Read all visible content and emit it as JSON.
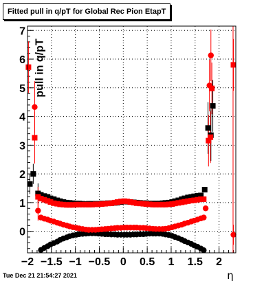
{
  "chart_data": {
    "type": "scatter",
    "title": "Fitted pull in q/pT for Global Rec Pion EtapT",
    "xlabel": "η",
    "ylabel": "pull in q/pT",
    "xlim": [
      -2.0,
      2.35
    ],
    "ylim": [
      -0.75,
      7.15
    ],
    "x_ticks": [
      -2,
      -1.5,
      -1,
      -0.5,
      0,
      0.5,
      1,
      1.5,
      2
    ],
    "x_tick_labels": [
      "−2",
      "−1.5",
      "−1",
      "−0.5",
      "0",
      "0.5",
      "1",
      "1.5",
      "2"
    ],
    "y_ticks": [
      0,
      1,
      2,
      3,
      4,
      5,
      6,
      7
    ],
    "y_tick_labels": [
      "0",
      "1",
      "2",
      "3",
      "4",
      "5",
      "6",
      "7"
    ],
    "grid": true,
    "series": [
      {
        "color": "#000000",
        "marker": "square",
        "points": [
          [
            -1.95,
            1.65
          ],
          [
            -1.88,
            2.0
          ],
          [
            -1.78,
            1.32
          ],
          [
            -1.72,
            1.27
          ],
          [
            -1.65,
            1.23
          ],
          [
            -1.58,
            1.2
          ],
          [
            -1.52,
            1.15
          ],
          [
            -1.45,
            1.12
          ],
          [
            -1.38,
            1.08
          ],
          [
            -1.32,
            1.05
          ],
          [
            -1.25,
            1.02
          ],
          [
            -1.18,
            1.0
          ],
          [
            -1.12,
            0.99
          ],
          [
            -1.05,
            0.98
          ],
          [
            -0.98,
            0.97
          ],
          [
            -0.92,
            0.97
          ],
          [
            -0.85,
            0.96
          ],
          [
            -0.78,
            0.95
          ],
          [
            -0.72,
            0.96
          ],
          [
            -0.65,
            0.96
          ],
          [
            -0.58,
            0.96
          ],
          [
            -0.52,
            0.96
          ],
          [
            -0.45,
            0.97
          ],
          [
            -0.38,
            0.97
          ],
          [
            -0.32,
            0.98
          ],
          [
            -0.25,
            0.98
          ],
          [
            -0.18,
            0.99
          ],
          [
            -0.12,
            1.0
          ],
          [
            -0.05,
            1.02
          ],
          [
            0.02,
            1.04
          ],
          [
            0.08,
            1.03
          ],
          [
            0.15,
            1.02
          ],
          [
            0.22,
            1.01
          ],
          [
            0.28,
            1.0
          ],
          [
            0.35,
            0.99
          ],
          [
            0.42,
            0.98
          ],
          [
            0.48,
            0.98
          ],
          [
            0.55,
            0.97
          ],
          [
            0.62,
            0.97
          ],
          [
            0.68,
            0.97
          ],
          [
            0.75,
            0.97
          ],
          [
            0.82,
            0.98
          ],
          [
            0.88,
            0.99
          ],
          [
            0.95,
            1.0
          ],
          [
            1.02,
            1.02
          ],
          [
            1.08,
            1.05
          ],
          [
            1.15,
            1.08
          ],
          [
            1.22,
            1.12
          ],
          [
            1.28,
            1.15
          ],
          [
            1.35,
            1.18
          ],
          [
            1.42,
            1.2
          ],
          [
            1.48,
            1.22
          ],
          [
            1.55,
            1.24
          ],
          [
            1.62,
            1.25
          ],
          [
            1.7,
            1.45
          ],
          [
            1.77,
            3.6
          ],
          [
            1.83,
            3.35
          ],
          [
            1.87,
            4.37
          ]
        ]
      },
      {
        "color": "#000000",
        "marker": "circle",
        "points": [
          [
            -1.72,
            -0.65
          ],
          [
            -1.65,
            -0.58
          ],
          [
            -1.58,
            -0.52
          ],
          [
            -1.52,
            -0.46
          ],
          [
            -1.45,
            -0.41
          ],
          [
            -1.38,
            -0.36
          ],
          [
            -1.32,
            -0.3
          ],
          [
            -1.25,
            -0.25
          ],
          [
            -1.18,
            -0.21
          ],
          [
            -1.12,
            -0.17
          ],
          [
            -1.05,
            -0.14
          ],
          [
            -0.98,
            -0.12
          ],
          [
            -0.92,
            -0.1
          ],
          [
            -0.85,
            -0.09
          ],
          [
            -0.78,
            -0.08
          ],
          [
            -0.72,
            -0.07
          ],
          [
            -0.65,
            -0.07
          ],
          [
            -0.58,
            -0.07
          ],
          [
            -0.52,
            -0.08
          ],
          [
            -0.45,
            -0.09
          ],
          [
            -0.38,
            -0.1
          ],
          [
            -0.32,
            -0.1
          ],
          [
            -0.25,
            -0.11
          ],
          [
            -0.18,
            -0.11
          ],
          [
            -0.12,
            -0.12
          ],
          [
            -0.05,
            -0.12
          ],
          [
            0.02,
            -0.12
          ],
          [
            0.08,
            -0.12
          ],
          [
            0.15,
            -0.12
          ],
          [
            0.22,
            -0.11
          ],
          [
            0.28,
            -0.11
          ],
          [
            0.35,
            -0.1
          ],
          [
            0.42,
            -0.1
          ],
          [
            0.48,
            -0.09
          ],
          [
            0.55,
            -0.08
          ],
          [
            0.62,
            -0.08
          ],
          [
            0.68,
            -0.08
          ],
          [
            0.75,
            -0.08
          ],
          [
            0.82,
            -0.09
          ],
          [
            0.88,
            -0.11
          ],
          [
            0.95,
            -0.13
          ],
          [
            1.02,
            -0.16
          ],
          [
            1.08,
            -0.2
          ],
          [
            1.15,
            -0.24
          ],
          [
            1.22,
            -0.29
          ],
          [
            1.28,
            -0.34
          ],
          [
            1.35,
            -0.39
          ],
          [
            1.42,
            -0.44
          ],
          [
            1.48,
            -0.49
          ],
          [
            1.55,
            -0.54
          ],
          [
            1.62,
            -0.6
          ],
          [
            1.68,
            -0.66
          ]
        ]
      },
      {
        "color": "#ff0000",
        "marker": "square",
        "points": [
          [
            -1.98,
            5.72
          ],
          [
            -1.85,
            3.26
          ],
          [
            -1.78,
            1.2
          ],
          [
            -1.72,
            1.14
          ],
          [
            -1.65,
            1.1
          ],
          [
            -1.58,
            1.06
          ],
          [
            -1.52,
            1.02
          ],
          [
            -1.45,
            0.98
          ],
          [
            -1.38,
            0.96
          ],
          [
            -1.32,
            0.94
          ],
          [
            -1.25,
            0.93
          ],
          [
            -1.18,
            0.92
          ],
          [
            -1.12,
            0.92
          ],
          [
            -1.05,
            0.92
          ],
          [
            -0.98,
            0.93
          ],
          [
            -0.92,
            0.93
          ],
          [
            -0.85,
            0.93
          ],
          [
            -0.78,
            0.93
          ],
          [
            -0.72,
            0.93
          ],
          [
            -0.65,
            0.93
          ],
          [
            -0.58,
            0.94
          ],
          [
            -0.52,
            0.94
          ],
          [
            -0.45,
            0.95
          ],
          [
            -0.38,
            0.96
          ],
          [
            -0.32,
            0.97
          ],
          [
            -0.25,
            0.98
          ],
          [
            -0.18,
            1.0
          ],
          [
            -0.12,
            1.02
          ],
          [
            -0.05,
            1.04
          ],
          [
            0.02,
            1.05
          ],
          [
            0.08,
            1.04
          ],
          [
            0.15,
            1.02
          ],
          [
            0.22,
            1.0
          ],
          [
            0.28,
            0.98
          ],
          [
            0.35,
            0.97
          ],
          [
            0.42,
            0.96
          ],
          [
            0.48,
            0.95
          ],
          [
            0.55,
            0.94
          ],
          [
            0.62,
            0.93
          ],
          [
            0.68,
            0.93
          ],
          [
            0.75,
            0.93
          ],
          [
            0.82,
            0.93
          ],
          [
            0.88,
            0.93
          ],
          [
            0.95,
            0.94
          ],
          [
            1.02,
            0.95
          ],
          [
            1.08,
            0.97
          ],
          [
            1.15,
            0.99
          ],
          [
            1.22,
            1.01
          ],
          [
            1.28,
            1.03
          ],
          [
            1.35,
            1.05
          ],
          [
            1.42,
            1.07
          ],
          [
            1.48,
            1.08
          ],
          [
            1.55,
            1.1
          ],
          [
            1.62,
            1.12
          ],
          [
            1.68,
            1.12
          ],
          [
            1.78,
            3.16
          ],
          [
            1.82,
            3.28
          ],
          [
            1.85,
            4.98
          ],
          [
            2.3,
            5.8
          ]
        ]
      },
      {
        "color": "#ff0000",
        "marker": "circle",
        "points": [
          [
            -1.85,
            4.33
          ],
          [
            -1.78,
            0.72
          ],
          [
            -1.72,
            0.48
          ],
          [
            -1.65,
            0.44
          ],
          [
            -1.58,
            0.41
          ],
          [
            -1.52,
            0.37
          ],
          [
            -1.45,
            0.34
          ],
          [
            -1.38,
            0.3
          ],
          [
            -1.32,
            0.27
          ],
          [
            -1.25,
            0.23
          ],
          [
            -1.18,
            0.2
          ],
          [
            -1.12,
            0.17
          ],
          [
            -1.05,
            0.14
          ],
          [
            -0.98,
            0.12
          ],
          [
            -0.92,
            0.1
          ],
          [
            -0.85,
            0.08
          ],
          [
            -0.78,
            0.06
          ],
          [
            -0.72,
            0.05
          ],
          [
            -0.65,
            0.05
          ],
          [
            -0.58,
            0.05
          ],
          [
            -0.52,
            0.06
          ],
          [
            -0.45,
            0.07
          ],
          [
            -0.38,
            0.08
          ],
          [
            -0.32,
            0.09
          ],
          [
            -0.25,
            0.1
          ],
          [
            -0.18,
            0.11
          ],
          [
            -0.12,
            0.12
          ],
          [
            -0.05,
            0.12
          ],
          [
            0.02,
            0.13
          ],
          [
            0.08,
            0.13
          ],
          [
            0.15,
            0.13
          ],
          [
            0.22,
            0.13
          ],
          [
            0.28,
            0.13
          ],
          [
            0.35,
            0.12
          ],
          [
            0.42,
            0.12
          ],
          [
            0.48,
            0.11
          ],
          [
            0.55,
            0.1
          ],
          [
            0.62,
            0.09
          ],
          [
            0.68,
            0.08
          ],
          [
            0.75,
            0.08
          ],
          [
            0.82,
            0.08
          ],
          [
            0.88,
            0.09
          ],
          [
            0.95,
            0.11
          ],
          [
            1.02,
            0.14
          ],
          [
            1.08,
            0.17
          ],
          [
            1.15,
            0.2
          ],
          [
            1.22,
            0.23
          ],
          [
            1.28,
            0.27
          ],
          [
            1.35,
            0.3
          ],
          [
            1.42,
            0.34
          ],
          [
            1.48,
            0.37
          ],
          [
            1.55,
            0.41
          ],
          [
            1.62,
            0.45
          ],
          [
            1.68,
            0.48
          ],
          [
            1.72,
            0.8
          ],
          [
            1.8,
            5.08
          ],
          [
            1.83,
            6.13
          ],
          [
            2.3,
            -0.12
          ]
        ]
      }
    ]
  },
  "footer": {
    "timestamp": "Tue Dec 21 21:54:27 2021"
  }
}
